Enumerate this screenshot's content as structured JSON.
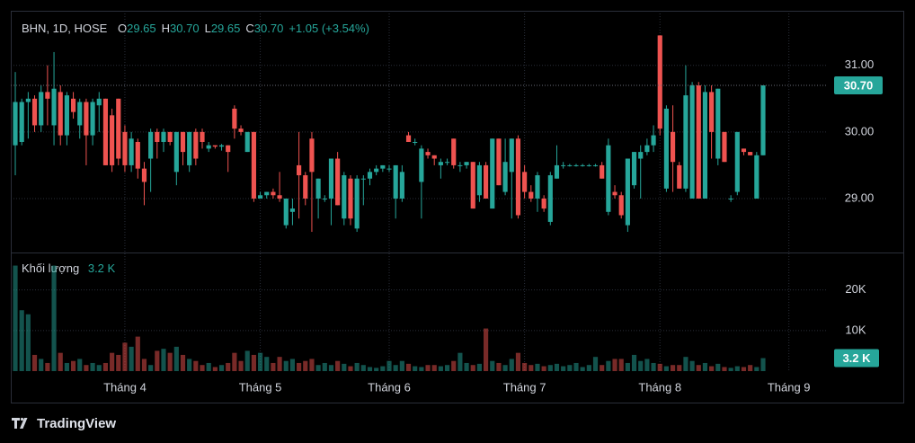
{
  "chart_data": {
    "type": "candlestick",
    "legend": {
      "symbol": "BHN, 1D, HOSE",
      "items": [
        {
          "label": "O",
          "value": "29.65"
        },
        {
          "label": "H",
          "value": "30.70"
        },
        {
          "label": "L",
          "value": "29.65"
        },
        {
          "label": "C",
          "value": "30.70"
        }
      ],
      "change": "+1.05 (+3.54%)"
    },
    "last_price_label": "30.70",
    "volume_title": "Khối lượng",
    "volume_value": "3.2 K",
    "volume_last_label": "3.2 K",
    "brand": "TradingView",
    "up_color": "#26a69a",
    "down_color": "#ef5350",
    "grid": true,
    "xlim": [
      -0.7,
      125.9
    ],
    "xticks": [
      {
        "value": 17,
        "label": "Tháng 4"
      },
      {
        "value": 38,
        "label": "Tháng 5"
      },
      {
        "value": 58,
        "label": "Tháng 6"
      },
      {
        "value": 79,
        "label": "Tháng 7"
      },
      {
        "value": 100,
        "label": "Tháng 8"
      },
      {
        "value": 120,
        "label": "Tháng 9"
      }
    ],
    "ylim": [
      28.19,
      31.82
    ],
    "yticks": [
      {
        "value": 29,
        "label": "29.00"
      },
      {
        "value": 30,
        "label": "30.00"
      },
      {
        "value": 31,
        "label": "31.00"
      }
    ],
    "volume_lim": [
      0,
      29000
    ],
    "volume_ticks": [
      {
        "value": 10000,
        "label": "10K"
      },
      {
        "value": 20000,
        "label": "20K"
      }
    ],
    "candles": [
      [
        29.8,
        30.9,
        29.35,
        30.45
      ],
      [
        29.85,
        30.5,
        29.8,
        30.45
      ],
      [
        30.45,
        30.6,
        29.9,
        30.5
      ],
      [
        30.5,
        30.55,
        30.0,
        30.1
      ],
      [
        30.1,
        30.7,
        30.0,
        30.6
      ],
      [
        30.6,
        31.0,
        30.1,
        30.5
      ],
      [
        30.1,
        31.2,
        29.8,
        30.65
      ],
      [
        30.6,
        30.7,
        29.8,
        29.95
      ],
      [
        29.95,
        30.6,
        29.8,
        30.55
      ],
      [
        30.5,
        30.6,
        30.2,
        30.3
      ],
      [
        30.1,
        30.5,
        29.9,
        30.45
      ],
      [
        30.45,
        30.5,
        29.5,
        29.95
      ],
      [
        29.95,
        30.5,
        29.8,
        30.45
      ],
      [
        30.4,
        30.6,
        30.0,
        30.5
      ],
      [
        30.5,
        30.5,
        29.5,
        29.5
      ],
      [
        30.25,
        30.35,
        29.4,
        29.5
      ],
      [
        30.5,
        30.5,
        29.5,
        29.6
      ],
      [
        30.0,
        30.1,
        29.4,
        29.5
      ],
      [
        29.5,
        30.0,
        29.4,
        29.9
      ],
      [
        29.85,
        29.9,
        29.3,
        29.45
      ],
      [
        29.45,
        29.55,
        28.9,
        29.25
      ],
      [
        29.6,
        30.05,
        29.1,
        30.0
      ],
      [
        30.0,
        30.05,
        29.6,
        29.85
      ],
      [
        29.85,
        30.05,
        29.7,
        30.0
      ],
      [
        30.0,
        30.0,
        29.8,
        29.85
      ],
      [
        29.4,
        30.0,
        29.2,
        30.0
      ],
      [
        30.0,
        30.0,
        29.5,
        29.7
      ],
      [
        29.5,
        30.0,
        29.4,
        30.0
      ],
      [
        30.0,
        30.05,
        29.5,
        29.6
      ],
      [
        30.0,
        30.05,
        29.75,
        29.85
      ],
      [
        29.75,
        29.85,
        29.7,
        29.8
      ],
      [
        29.8,
        29.8,
        29.75,
        29.78
      ],
      [
        29.78,
        29.82,
        29.72,
        29.8
      ],
      [
        29.8,
        29.8,
        29.4,
        29.7
      ],
      [
        30.35,
        30.4,
        29.9,
        30.05
      ],
      [
        30.05,
        30.1,
        29.95,
        30.0
      ],
      [
        29.7,
        30.0,
        29.7,
        30.0
      ],
      [
        30.0,
        30.0,
        28.95,
        29.0
      ],
      [
        29.0,
        29.1,
        29.0,
        29.05
      ],
      [
        29.05,
        29.1,
        29.0,
        29.1
      ],
      [
        29.1,
        29.15,
        29.0,
        29.05
      ],
      [
        29.05,
        29.4,
        28.95,
        29.0
      ],
      [
        28.6,
        29.0,
        28.55,
        29.0
      ],
      [
        28.8,
        29.0,
        28.6,
        28.85
      ],
      [
        29.5,
        30.0,
        28.7,
        29.35
      ],
      [
        29.35,
        29.4,
        28.9,
        29.0
      ],
      [
        29.9,
        30.0,
        28.5,
        29.4
      ],
      [
        29.0,
        29.3,
        28.7,
        29.3
      ],
      [
        29.0,
        29.05,
        28.95,
        29.0
      ],
      [
        29.0,
        29.6,
        28.6,
        29.6
      ],
      [
        29.6,
        29.7,
        28.9,
        28.9
      ],
      [
        28.7,
        29.4,
        28.6,
        29.35
      ],
      [
        29.3,
        29.35,
        28.6,
        28.7
      ],
      [
        28.55,
        29.35,
        28.5,
        29.3
      ],
      [
        29.3,
        29.35,
        28.9,
        29.3
      ],
      [
        29.3,
        29.45,
        29.2,
        29.4
      ],
      [
        29.4,
        29.5,
        29.35,
        29.45
      ],
      [
        29.45,
        29.5,
        29.4,
        29.5
      ],
      [
        29.45,
        29.5,
        29.4,
        29.45
      ],
      [
        29.0,
        29.5,
        28.7,
        29.5
      ],
      [
        29.0,
        29.5,
        28.95,
        29.4
      ],
      [
        29.95,
        30.0,
        29.85,
        29.85
      ],
      [
        29.85,
        29.9,
        29.8,
        29.85
      ],
      [
        29.25,
        29.8,
        28.7,
        29.75
      ],
      [
        29.7,
        29.75,
        29.6,
        29.65
      ],
      [
        29.65,
        29.65,
        29.5,
        29.6
      ],
      [
        29.5,
        29.6,
        29.3,
        29.55
      ],
      [
        29.55,
        29.6,
        29.5,
        29.55
      ],
      [
        29.9,
        29.9,
        29.45,
        29.5
      ],
      [
        29.5,
        29.55,
        29.4,
        29.5
      ],
      [
        29.5,
        29.55,
        29.45,
        29.55
      ],
      [
        29.55,
        29.55,
        28.85,
        28.85
      ],
      [
        29.05,
        29.55,
        28.95,
        29.5
      ],
      [
        29.5,
        29.55,
        29.0,
        29.0
      ],
      [
        28.85,
        29.9,
        28.85,
        29.9
      ],
      [
        29.9,
        29.9,
        29.2,
        29.2
      ],
      [
        29.1,
        29.9,
        29.05,
        29.55
      ],
      [
        29.4,
        29.9,
        28.7,
        29.9
      ],
      [
        29.9,
        29.95,
        28.7,
        28.75
      ],
      [
        29.4,
        29.5,
        29.0,
        29.1
      ],
      [
        29.1,
        29.2,
        28.95,
        29.0
      ],
      [
        29.0,
        29.4,
        28.8,
        29.35
      ],
      [
        29.0,
        29.05,
        28.8,
        28.85
      ],
      [
        28.65,
        29.4,
        28.6,
        29.35
      ],
      [
        29.3,
        29.8,
        29.3,
        29.5
      ],
      [
        29.5,
        29.55,
        29.45,
        29.5
      ],
      [
        29.5,
        29.52,
        29.48,
        29.5
      ],
      [
        29.5,
        29.52,
        29.48,
        29.5
      ],
      [
        29.5,
        29.52,
        29.48,
        29.5
      ],
      [
        29.5,
        29.52,
        29.48,
        29.5
      ],
      [
        29.5,
        29.52,
        29.48,
        29.5
      ],
      [
        29.5,
        29.55,
        29.3,
        29.3
      ],
      [
        28.8,
        29.9,
        28.75,
        29.8
      ],
      [
        29.1,
        29.2,
        29.0,
        29.05
      ],
      [
        29.05,
        29.1,
        28.7,
        28.75
      ],
      [
        28.6,
        29.6,
        28.5,
        29.6
      ],
      [
        29.2,
        29.7,
        29.15,
        29.7
      ],
      [
        29.6,
        29.8,
        29.0,
        29.7
      ],
      [
        29.7,
        29.9,
        29.65,
        29.8
      ],
      [
        29.8,
        30.1,
        29.7,
        29.95
      ],
      [
        31.45,
        31.45,
        29.95,
        30.05
      ],
      [
        29.15,
        30.4,
        29.1,
        30.35
      ],
      [
        30.0,
        30.4,
        29.1,
        29.55
      ],
      [
        29.5,
        29.55,
        29.15,
        29.15
      ],
      [
        29.15,
        31.0,
        29.1,
        30.55
      ],
      [
        29.0,
        30.75,
        29.0,
        30.7
      ],
      [
        30.7,
        30.75,
        29.0,
        29.0
      ],
      [
        29.0,
        30.7,
        29.0,
        30.6
      ],
      [
        30.6,
        30.7,
        29.6,
        30.0
      ],
      [
        29.6,
        30.65,
        29.5,
        30.65
      ],
      [
        30.0,
        30.0,
        29.55,
        29.55
      ],
      [
        29.0,
        29.05,
        28.95,
        29.0
      ],
      [
        29.1,
        30.0,
        29.05,
        30.0
      ],
      [
        29.75,
        29.75,
        29.65,
        29.7
      ],
      [
        29.7,
        29.7,
        29.65,
        29.65
      ],
      [
        29.0,
        29.7,
        29.0,
        29.65
      ],
      [
        29.65,
        30.7,
        29.65,
        30.7
      ]
    ],
    "volume": [
      26000,
      15000,
      14000,
      4000,
      3000,
      2000,
      26000,
      4500,
      2000,
      2500,
      3000,
      1500,
      2000,
      1500,
      2000,
      4500,
      4000,
      7000,
      6000,
      8500,
      3000,
      1500,
      5000,
      5500,
      4500,
      6000,
      4000,
      3000,
      2500,
      1500,
      2000,
      1000,
      1500,
      2000,
      4500,
      2500,
      5000,
      4000,
      4500,
      3500,
      2000,
      3500,
      2500,
      3000,
      2000,
      2500,
      3000,
      1500,
      2000,
      1500,
      2500,
      1800,
      1200,
      2000,
      1500,
      1000,
      800,
      1200,
      2500,
      1500,
      2500,
      1800,
      1200,
      1000,
      1500,
      1500,
      1200,
      1500,
      2500,
      4500,
      2000,
      1500,
      1800,
      10500,
      2500,
      2000,
      1500,
      3000,
      4500,
      2000,
      1500,
      1800,
      1200,
      1500,
      1800,
      1200,
      1500,
      2000,
      1000,
      1500,
      3500,
      1500,
      2500,
      3000,
      3000,
      2000,
      4000,
      2500,
      3000,
      2000,
      1800,
      1200,
      1500,
      1500,
      3500,
      2500,
      1500,
      2000,
      1200,
      1800,
      1000,
      800,
      1200,
      1000,
      1500,
      1000,
      3200
    ]
  }
}
